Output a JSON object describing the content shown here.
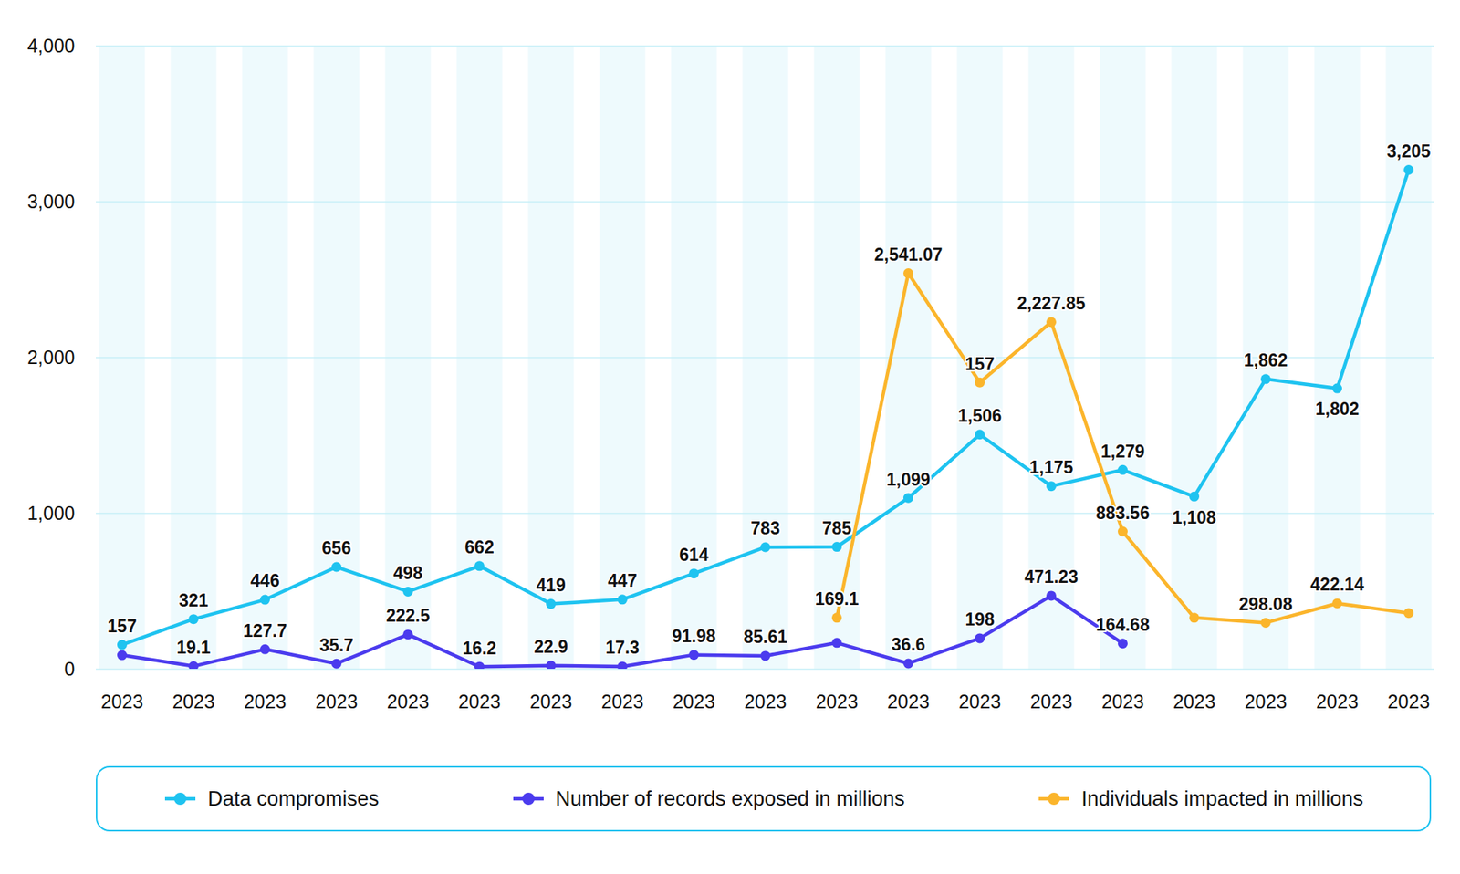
{
  "chart_data": {
    "type": "line",
    "categories": [
      "2023",
      "2023",
      "2023",
      "2023",
      "2023",
      "2023",
      "2023",
      "2023",
      "2023",
      "2023",
      "2023",
      "2023",
      "2023",
      "2023",
      "2023",
      "2023",
      "2023",
      "2023",
      "2023"
    ],
    "series": [
      {
        "name": "Data compromises",
        "color": "#1ec3f0",
        "marker": "circle",
        "values": [
          157,
          321,
          446,
          656,
          498,
          662,
          419,
          447,
          614,
          783,
          785,
          1099,
          1506,
          1175,
          1279,
          1108,
          1862,
          1802,
          3205
        ],
        "value_labels": [
          "157",
          "321",
          "446",
          "656",
          "498",
          "662",
          "419",
          "447",
          "614",
          "783",
          "785",
          "1,099",
          "1,506",
          "1,175",
          "1,279",
          "1,108",
          "1,862",
          "1,802",
          "3,205"
        ]
      },
      {
        "name": "Number of records exposed in millions",
        "color": "#4b3bee",
        "marker": "circle",
        "values": [
          90,
          19.1,
          127.7,
          35.7,
          222.5,
          16.2,
          22.9,
          17.3,
          91.98,
          85.61,
          169.1,
          36.6,
          198,
          471.23,
          164.68,
          null,
          null,
          null,
          null
        ],
        "value_labels": [
          null,
          "19.1",
          "127.7",
          "35.7",
          "222.5",
          "16.2",
          "22.9",
          "17.3",
          "91.98",
          "85.61",
          "169.1",
          "36.6",
          "198",
          "471.23",
          "164.68",
          null,
          null,
          null,
          null
        ]
      },
      {
        "name": "Individuals impacted in millions",
        "color": "#fbb52b",
        "marker": "circle",
        "values": [
          null,
          null,
          null,
          null,
          null,
          null,
          null,
          null,
          null,
          null,
          330,
          2541.07,
          1840,
          2227.85,
          883.56,
          330,
          298.08,
          422.14,
          360
        ],
        "value_labels": [
          null,
          null,
          null,
          null,
          null,
          null,
          null,
          null,
          null,
          null,
          null,
          "2,541.07",
          null,
          "2,227.85",
          "883.56",
          null,
          "298.08",
          "422.14",
          null
        ]
      }
    ],
    "annotations": [
      {
        "text": "157",
        "x": 12,
        "y": 1840
      }
    ],
    "ylim": [
      0,
      4000
    ],
    "yticks": [
      0,
      {
        "value": 1000,
        "label": "1,000"
      },
      {
        "value": 2000,
        "label": "2,000"
      },
      {
        "value": 3000,
        "label": "3,000"
      },
      {
        "value": 4000,
        "label": "4,000"
      }
    ],
    "grid": true,
    "data_labels": true,
    "legend": "bottom"
  }
}
